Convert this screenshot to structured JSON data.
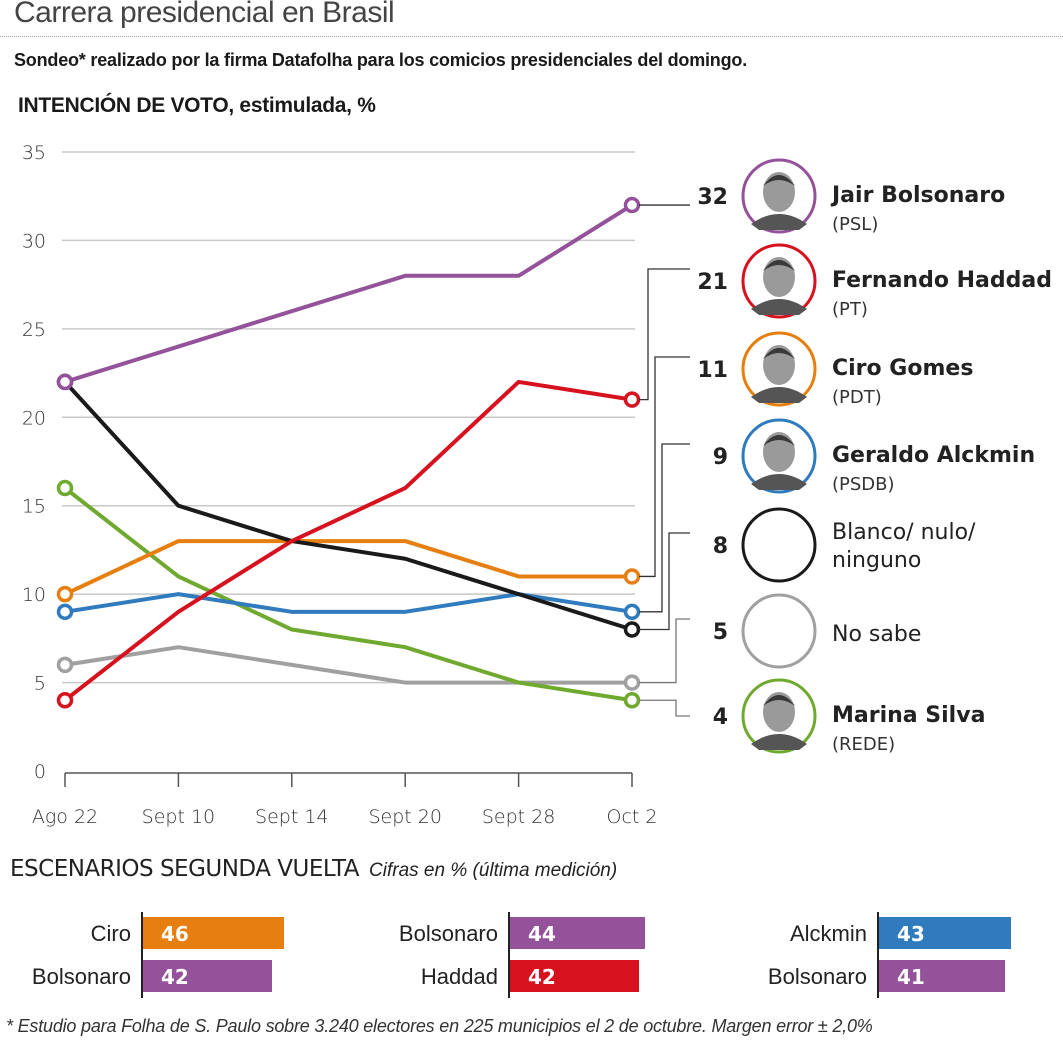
{
  "header": {
    "title": "Carrera presidencial en Brasil",
    "subtitle": "Sondeo* realizado por la firma Datafolha para los comicios presidenciales del domingo.",
    "chart_heading": "INTENCIÓN DE VOTO, estimulada, %"
  },
  "chart_data": [
    {
      "type": "line",
      "title": "INTENCIÓN DE VOTO, estimulada, %",
      "xlabel": "",
      "ylabel": "%",
      "x": [
        "Ago 22",
        "Sept 10",
        "Sept 14",
        "Sept 20",
        "Sept 28",
        "Oct 2"
      ],
      "ylim": [
        0,
        35
      ],
      "yticks": [
        0,
        5,
        10,
        15,
        20,
        25,
        30,
        35
      ],
      "grid": true,
      "legend_position": "right",
      "series": [
        {
          "name": "Jair Bolsonaro",
          "party": "(PSL)",
          "color": "#93529a",
          "values": [
            22,
            24,
            26,
            28,
            28,
            32
          ],
          "last_label": "32",
          "photo": "bolsonaro-photo",
          "bold_name": true
        },
        {
          "name": "Fernando Haddad",
          "party": "(PT)",
          "color": "#d7121f",
          "values": [
            4,
            9,
            13,
            16,
            22,
            21
          ],
          "last_label": "21",
          "photo": "haddad-photo",
          "bold_name": true
        },
        {
          "name": "Ciro Gomes",
          "party": "(PDT)",
          "color": "#e67f10",
          "values": [
            10,
            13,
            13,
            13,
            11,
            11
          ],
          "last_label": "11",
          "photo": "ciro-photo",
          "bold_name": true
        },
        {
          "name": "Geraldo Alckmin",
          "party": "(PSDB)",
          "color": "#2f7bbd",
          "values": [
            9,
            10,
            9,
            9,
            10,
            9
          ],
          "last_label": "9",
          "photo": "alckmin-photo",
          "bold_name": true
        },
        {
          "name": "Blanco/ nulo/ ninguno",
          "name_lines": [
            "Blanco/ nulo/",
            "ninguno"
          ],
          "party": "",
          "color": "#1a1a1a",
          "values": [
            22,
            15,
            13,
            12,
            10,
            8
          ],
          "last_label": "8",
          "photo": null,
          "bold_name": false
        },
        {
          "name": "No sabe",
          "party": "",
          "color": "#a0a0a0",
          "values": [
            6,
            7,
            6,
            5,
            5,
            5
          ],
          "last_label": "5",
          "photo": null,
          "bold_name": false
        },
        {
          "name": "Marina Silva",
          "party": "(REDE)",
          "color": "#70a92f",
          "values": [
            16,
            11,
            8,
            7,
            5,
            4
          ],
          "last_label": "4",
          "photo": "marina-photo",
          "bold_name": true
        }
      ]
    },
    {
      "type": "bar",
      "title": "ESCENARIOS SEGUNDA VUELTA",
      "subtitle": "Cifras en % (última medición)",
      "scenarios": [
        {
          "rows": [
            {
              "label": "Ciro",
              "value": 46,
              "color": "#e67f10"
            },
            {
              "label": "Bolsonaro",
              "value": 42,
              "color": "#93529a"
            }
          ]
        },
        {
          "rows": [
            {
              "label": "Bolsonaro",
              "value": 44,
              "color": "#93529a"
            },
            {
              "label": "Haddad",
              "value": 42,
              "color": "#d7121f"
            }
          ]
        },
        {
          "rows": [
            {
              "label": "Alckmin",
              "value": 43,
              "color": "#2f7bbd"
            },
            {
              "label": "Bolsonaro",
              "value": 41,
              "color": "#93529a"
            }
          ]
        }
      ]
    }
  ],
  "second_round": {
    "heading": "ESCENARIOS SEGUNDA VUELTA",
    "subheading": "Cifras en % (última medición)"
  },
  "footnote": "* Estudio para Folha de S. Paulo sobre 3.240 electores en 225 municipios el 2 de octubre. Margen error ± 2,0%"
}
